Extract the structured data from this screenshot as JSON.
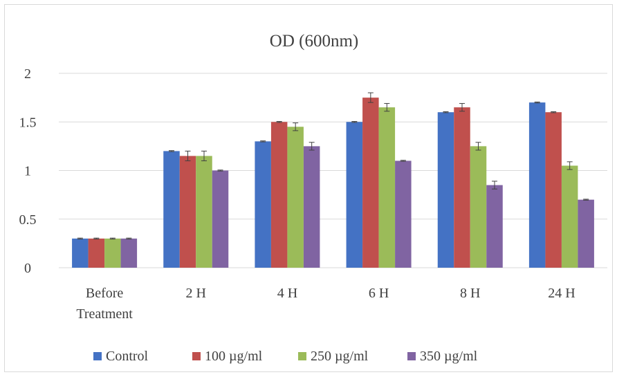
{
  "chart_data": {
    "type": "bar",
    "title": "OD (600nm)",
    "xlabel": "",
    "ylabel": "",
    "categories": [
      "Before Treatment",
      "2 H",
      "4 H",
      "6 H",
      "8 H",
      "24 H"
    ],
    "category_lines": [
      [
        "Before",
        "Treatment"
      ],
      [
        "2 H"
      ],
      [
        "4 H"
      ],
      [
        "6 H"
      ],
      [
        "8 H"
      ],
      [
        "24 H"
      ]
    ],
    "ylim": [
      0,
      2
    ],
    "yticks": [
      "0",
      "0.5",
      "1",
      "1.5",
      "2"
    ],
    "ytick_values": [
      0,
      0.5,
      1,
      1.5,
      2
    ],
    "grid": true,
    "legend_position": "bottom",
    "series": [
      {
        "name": "Control",
        "color": "#4472c4",
        "values": [
          0.3,
          1.2,
          1.3,
          1.5,
          1.6,
          1.7
        ],
        "errors": [
          0.005,
          0.005,
          0.005,
          0.005,
          0.005,
          0.005
        ]
      },
      {
        "name": "100 µg/ml",
        "color": "#c0504d",
        "values": [
          0.3,
          1.15,
          1.5,
          1.75,
          1.65,
          1.6
        ],
        "errors": [
          0.005,
          0.05,
          0.005,
          0.05,
          0.04,
          0.005
        ]
      },
      {
        "name": "250 µg/ml",
        "color": "#9bbb59",
        "values": [
          0.3,
          1.15,
          1.45,
          1.65,
          1.25,
          1.05
        ],
        "errors": [
          0.005,
          0.05,
          0.04,
          0.04,
          0.04,
          0.04
        ]
      },
      {
        "name": "350 µg/ml",
        "color": "#8064a2",
        "values": [
          0.3,
          1.0,
          1.25,
          1.1,
          0.85,
          0.7
        ],
        "errors": [
          0.005,
          0.005,
          0.04,
          0.005,
          0.04,
          0.005
        ]
      }
    ]
  }
}
